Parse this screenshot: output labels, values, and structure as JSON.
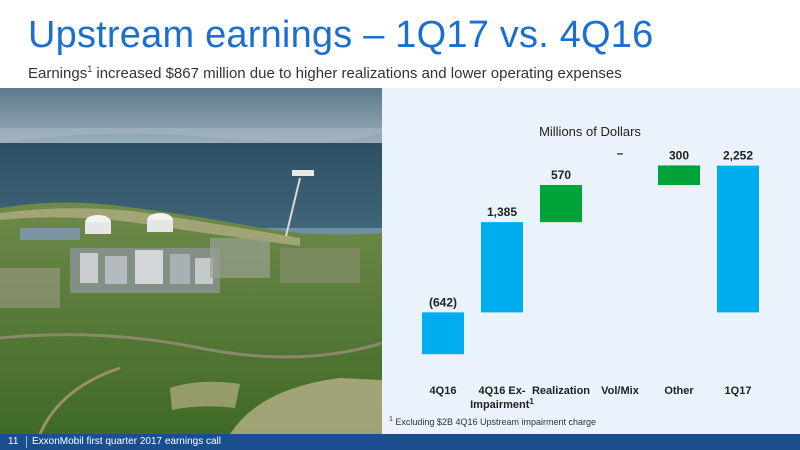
{
  "header": {
    "title": "Upstream earnings – 1Q17 vs. 4Q16",
    "subtitle_prefix": "Earnings",
    "subtitle_ref": "1",
    "subtitle_rest": " increased $867 million due to higher realizations and lower operating expenses"
  },
  "photo": {
    "icon": "lng-plant-aerial-photo"
  },
  "chart_data": {
    "type": "bar",
    "subtype": "waterfall",
    "title": "Millions of Dollars",
    "categories": [
      "4Q16",
      "4Q16 Ex-Impairment",
      "Realization",
      "Vol/Mix",
      "Other",
      "1Q17"
    ],
    "tick_labels": [
      {
        "line1": "4Q16",
        "line2": "",
        "sup": ""
      },
      {
        "line1": "4Q16 Ex-",
        "line2": "Impairment",
        "sup": "1"
      },
      {
        "line1": "Realization",
        "line2": "",
        "sup": ""
      },
      {
        "line1": "Vol/Mix",
        "line2": "",
        "sup": ""
      },
      {
        "line1": "Other",
        "line2": "",
        "sup": ""
      },
      {
        "line1": "1Q17",
        "line2": "",
        "sup": ""
      }
    ],
    "bars": [
      {
        "category": "4Q16",
        "kind": "total",
        "value": -642,
        "label": "(642)"
      },
      {
        "category": "4Q16 Ex-Impairment",
        "kind": "total",
        "value": 1385,
        "label": "1,385"
      },
      {
        "category": "Realization",
        "kind": "delta",
        "value": 570,
        "label": "570"
      },
      {
        "category": "Vol/Mix",
        "kind": "delta",
        "value": 0,
        "label": "–"
      },
      {
        "category": "Other",
        "kind": "delta",
        "value": 300,
        "label": "300"
      },
      {
        "category": "1Q17",
        "kind": "total",
        "value": 2252,
        "label": "2,252"
      }
    ],
    "ylim": [
      -700,
      2400
    ],
    "grid": false,
    "colors": {
      "total": "#00adef",
      "delta": "#00a23a"
    }
  },
  "footnote": {
    "ref": "1",
    "text": " Excluding $2B 4Q16 Upstream impairment charge"
  },
  "footer": {
    "page": "11",
    "event": "ExxonMobil first quarter 2017 earnings call"
  }
}
